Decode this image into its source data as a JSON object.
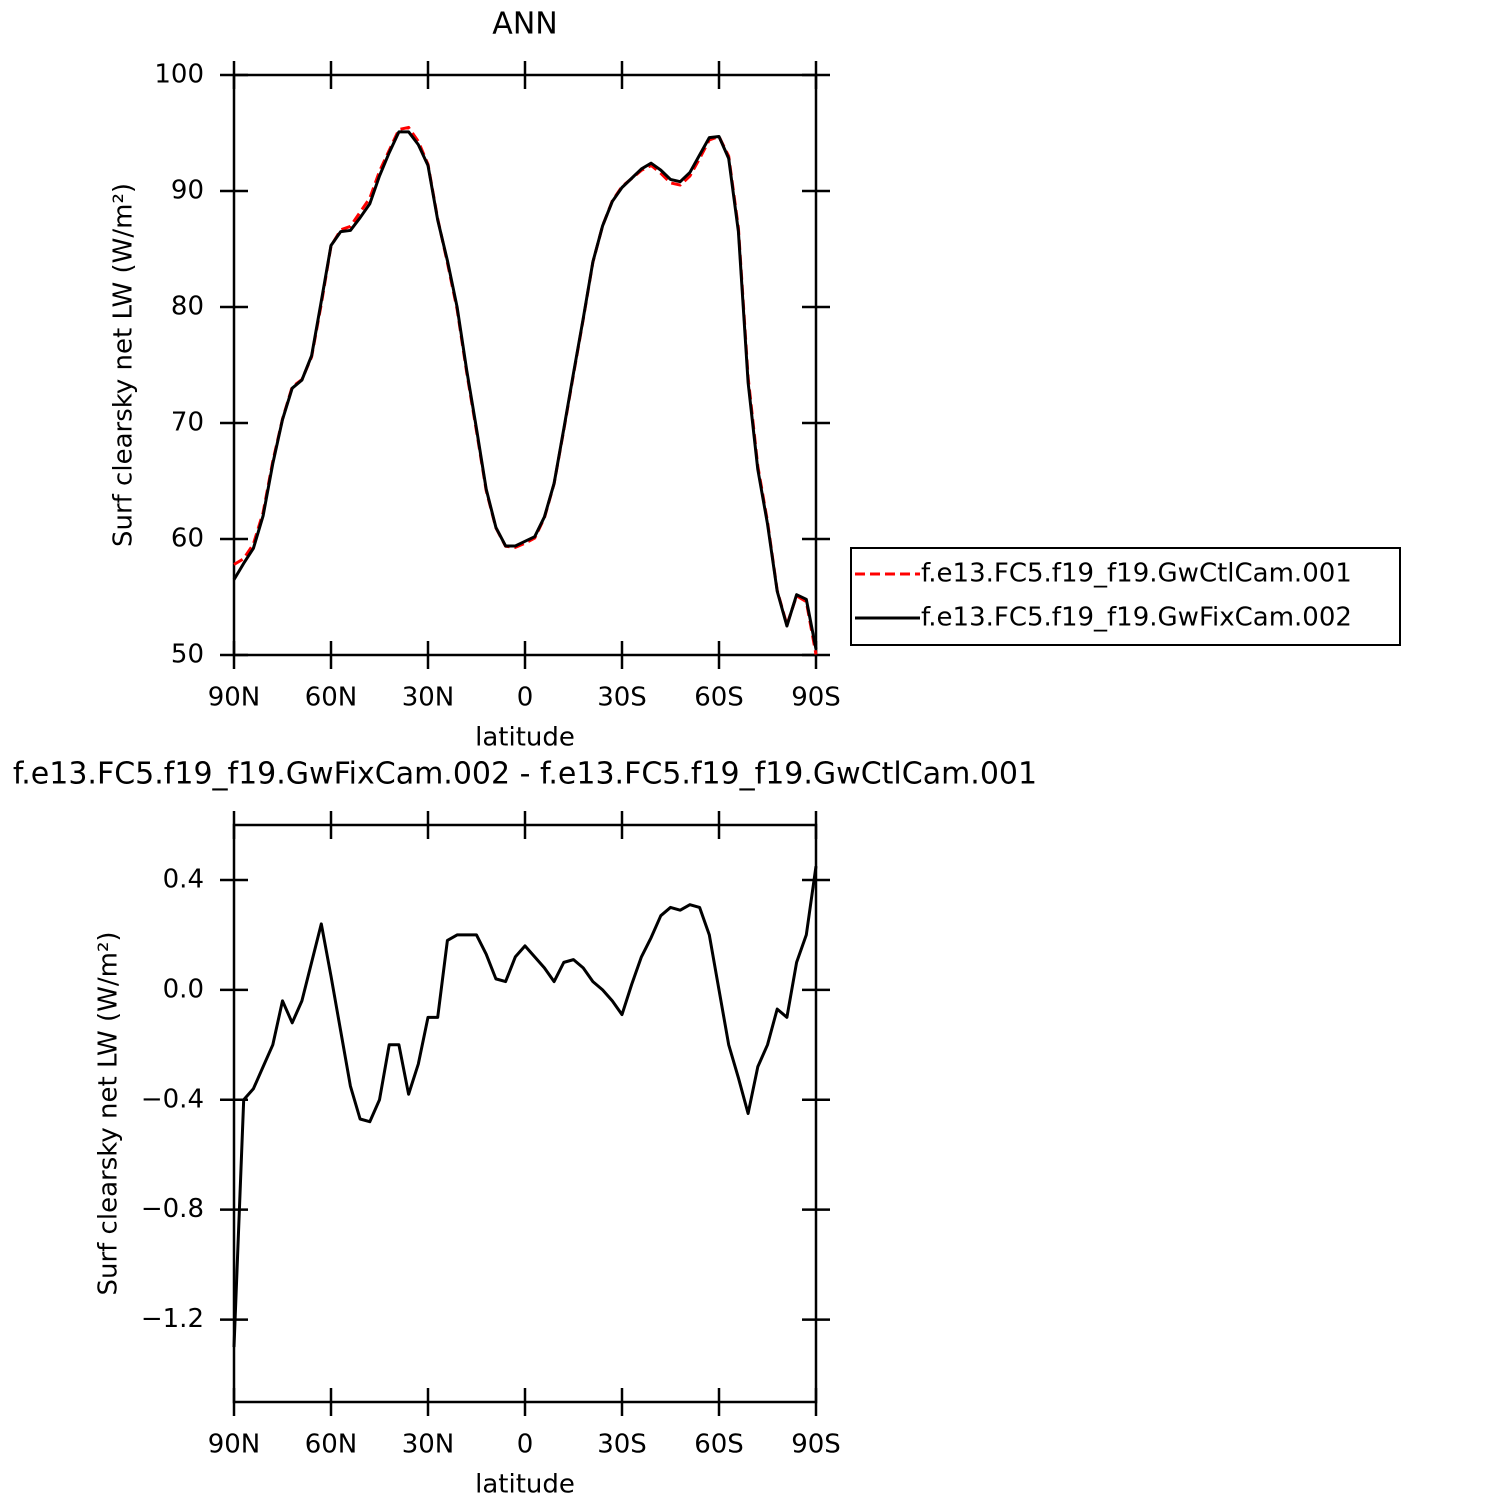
{
  "chart_data": [
    {
      "type": "line",
      "title": "ANN",
      "xlabel": "latitude",
      "ylabel": "Surf clearsky net LW (W/m²)",
      "xlim": [
        90,
        -90
      ],
      "xticks": [
        {
          "value": 90,
          "label": "90N"
        },
        {
          "value": 60,
          "label": "60N"
        },
        {
          "value": 30,
          "label": "30N"
        },
        0,
        {
          "value": -30,
          "label": "30S"
        },
        {
          "value": -60,
          "label": "60S"
        },
        {
          "value": -90,
          "label": "90S"
        }
      ],
      "ylim": [
        50,
        100
      ],
      "yticks": [
        50,
        60,
        70,
        80,
        90,
        100
      ],
      "legend": "right",
      "x": [
        90,
        87,
        84,
        81,
        78,
        75,
        72,
        69,
        66,
        63,
        60,
        57,
        54,
        51,
        48,
        45,
        42,
        39,
        36,
        33,
        30,
        27,
        24,
        21,
        18,
        15,
        12,
        9,
        6,
        3,
        0,
        -3,
        -6,
        -9,
        -12,
        -15,
        -18,
        -21,
        -24,
        -27,
        -30,
        -33,
        -36,
        -39,
        -42,
        -45,
        -48,
        -51,
        -54,
        -57,
        -60,
        -63,
        -66,
        -69,
        -72,
        -75,
        -78,
        -81,
        -84,
        -87,
        -90
      ],
      "series": [
        {
          "name": "f.e13.FC5.f19_f19.GwCtlCam.001",
          "color": "#ff0000",
          "line_style": "dashed",
          "values": [
            57.8,
            58.3,
            59.56,
            62.28,
            66.7,
            70.34,
            73.12,
            73.74,
            75.7,
            80.26,
            85.25,
            86.65,
            86.95,
            88.17,
            89.38,
            91.7,
            93.5,
            95.3,
            95.48,
            94.27,
            92.3,
            87.6,
            83.82,
            79.8,
            74.3,
            69.3,
            64.17,
            60.96,
            59.37,
            59.28,
            59.64,
            60.08,
            61.82,
            64.77,
            69.4,
            74.19,
            78.92,
            83.87,
            87.0,
            89.14,
            90.39,
            91.08,
            91.78,
            92.21,
            91.53,
            90.7,
            90.51,
            91.29,
            92.8,
            94.4,
            94.7,
            93.0,
            86.82,
            73.95,
            66.28,
            61.5,
            55.57,
            52.6,
            55.1,
            54.6,
            50.05
          ]
        },
        {
          "name": "f.e13.FC5.f19_f19.GwFixCam.002",
          "color": "#000000",
          "line_style": "solid",
          "values": [
            56.5,
            57.9,
            59.2,
            62.0,
            66.5,
            70.3,
            73.0,
            73.7,
            75.8,
            80.5,
            85.3,
            86.5,
            86.6,
            87.7,
            88.9,
            91.3,
            93.3,
            95.1,
            95.1,
            94.0,
            92.2,
            87.5,
            84.0,
            80.0,
            74.5,
            69.5,
            64.3,
            61.0,
            59.4,
            59.4,
            59.8,
            60.2,
            61.9,
            64.8,
            69.5,
            74.3,
            79.0,
            83.9,
            87.0,
            89.1,
            90.3,
            91.1,
            91.9,
            92.4,
            91.8,
            91.0,
            90.8,
            91.6,
            93.1,
            94.6,
            94.7,
            92.8,
            86.5,
            73.5,
            66.0,
            61.3,
            55.5,
            52.5,
            55.2,
            54.8,
            50.5
          ]
        }
      ]
    },
    {
      "type": "line",
      "title": "f.e13.FC5.f19_f19.GwFixCam.002 - f.e13.FC5.f19_f19.GwCtlCam.001",
      "xlabel": "latitude",
      "ylabel": "Surf clearsky net LW (W/m²)",
      "xlim": [
        90,
        -90
      ],
      "xticks": [
        {
          "value": 90,
          "label": "90N"
        },
        {
          "value": 60,
          "label": "60N"
        },
        {
          "value": 30,
          "label": "30N"
        },
        0,
        {
          "value": -30,
          "label": "30S"
        },
        {
          "value": -60,
          "label": "60S"
        },
        {
          "value": -90,
          "label": "90S"
        }
      ],
      "ylim": [
        -1.5,
        0.6
      ],
      "yticks": [
        {
          "value": -1.2,
          "label": "−1.2"
        },
        {
          "value": -0.8,
          "label": "−0.8"
        },
        {
          "value": -0.4,
          "label": "−0.4"
        },
        {
          "value": 0,
          "label": "0.0"
        },
        0.4
      ],
      "x": [
        90,
        87,
        84,
        81,
        78,
        75,
        72,
        69,
        66,
        63,
        60,
        57,
        54,
        51,
        48,
        45,
        42,
        39,
        36,
        33,
        30,
        27,
        24,
        21,
        18,
        15,
        12,
        9,
        6,
        3,
        0,
        -3,
        -6,
        -9,
        -12,
        -15,
        -18,
        -21,
        -24,
        -27,
        -30,
        -33,
        -36,
        -39,
        -42,
        -45,
        -48,
        -51,
        -54,
        -57,
        -60,
        -63,
        -66,
        -69,
        -72,
        -75,
        -78,
        -81,
        -84,
        -87,
        -90
      ],
      "series": [
        {
          "color": "#000000",
          "line_style": "solid",
          "values": [
            -1.3,
            -0.4,
            -0.36,
            -0.28,
            -0.2,
            -0.04,
            -0.12,
            -0.04,
            0.1,
            0.24,
            0.05,
            -0.15,
            -0.35,
            -0.47,
            -0.48,
            -0.4,
            -0.2,
            -0.2,
            -0.38,
            -0.27,
            -0.1,
            -0.1,
            0.18,
            0.2,
            0.2,
            0.2,
            0.13,
            0.04,
            0.03,
            0.12,
            0.16,
            0.12,
            0.08,
            0.03,
            0.1,
            0.11,
            0.08,
            0.03,
            0.0,
            -0.04,
            -0.09,
            0.02,
            0.12,
            0.19,
            0.27,
            0.3,
            0.29,
            0.31,
            0.3,
            0.2,
            0.0,
            -0.2,
            -0.32,
            -0.45,
            -0.28,
            -0.2,
            -0.07,
            -0.1,
            0.1,
            0.2,
            0.45
          ]
        }
      ]
    }
  ]
}
